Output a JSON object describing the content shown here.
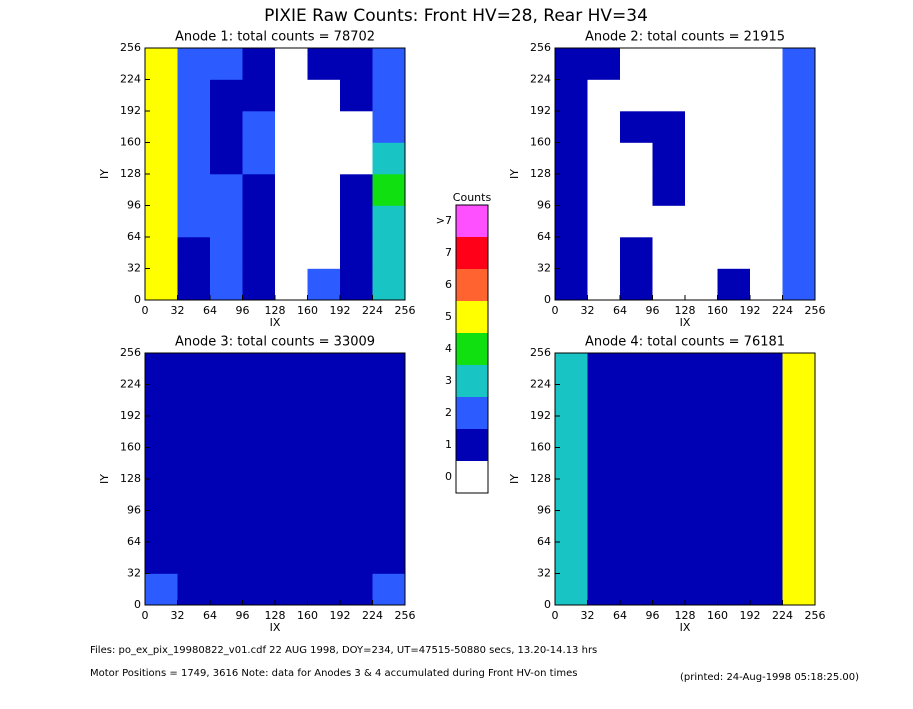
{
  "title": "PIXIE Raw Counts:  Front HV=28, Rear HV=34",
  "colorbar": {
    "title": "Counts",
    "levels": [
      0,
      1,
      2,
      3,
      4,
      5,
      6,
      7,
      {
        "value": 8,
        "label": ">7"
      }
    ],
    "colors": [
      "#ffffff",
      "#0000b4",
      "#2c5cff",
      "#18c4c4",
      "#10e010",
      "#ffff00",
      "#ff6430",
      "#ff0018",
      "#ff50ff"
    ]
  },
  "chart_data": [
    {
      "type": "heatmap",
      "title": "Anode 1: total counts = 78702",
      "xlabel": "IX",
      "ylabel": "IY",
      "xlim": [
        0,
        256
      ],
      "ylim": [
        0,
        256
      ],
      "xticks": [
        0,
        32,
        64,
        96,
        128,
        160,
        192,
        224,
        256
      ],
      "yticks": [
        0,
        32,
        64,
        96,
        128,
        160,
        192,
        224,
        256
      ],
      "z": [
        [
          5,
          1,
          2,
          1,
          0,
          2,
          1,
          3
        ],
        [
          5,
          1,
          2,
          1,
          0,
          0,
          1,
          3
        ],
        [
          5,
          2,
          2,
          1,
          0,
          0,
          1,
          3
        ],
        [
          5,
          2,
          2,
          1,
          0,
          0,
          1,
          4
        ],
        [
          5,
          2,
          1,
          2,
          0,
          0,
          0,
          3
        ],
        [
          5,
          2,
          1,
          2,
          0,
          0,
          0,
          2
        ],
        [
          5,
          2,
          1,
          1,
          0,
          0,
          1,
          2
        ],
        [
          5,
          2,
          2,
          1,
          0,
          1,
          1,
          2
        ]
      ]
    },
    {
      "type": "heatmap",
      "title": "Anode 2: total counts = 21915",
      "xlabel": "IX",
      "ylabel": "IY",
      "xlim": [
        0,
        256
      ],
      "ylim": [
        0,
        256
      ],
      "xticks": [
        0,
        32,
        64,
        96,
        128,
        160,
        192,
        224,
        256
      ],
      "yticks": [
        0,
        32,
        64,
        96,
        128,
        160,
        192,
        224,
        256
      ],
      "z": [
        [
          1,
          0,
          1,
          0,
          0,
          1,
          0,
          2
        ],
        [
          1,
          0,
          1,
          0,
          0,
          0,
          0,
          2
        ],
        [
          1,
          0,
          0,
          0,
          0,
          0,
          0,
          2
        ],
        [
          1,
          0,
          0,
          1,
          0,
          0,
          0,
          2
        ],
        [
          1,
          0,
          0,
          1,
          0,
          0,
          0,
          2
        ],
        [
          1,
          0,
          1,
          1,
          0,
          0,
          0,
          2
        ],
        [
          1,
          0,
          0,
          0,
          0,
          0,
          0,
          2
        ],
        [
          1,
          1,
          0,
          0,
          0,
          0,
          0,
          2
        ]
      ]
    },
    {
      "type": "heatmap",
      "title": "Anode 3: total counts = 33009",
      "xlabel": "IX",
      "ylabel": "IY",
      "xlim": [
        0,
        256
      ],
      "ylim": [
        0,
        256
      ],
      "xticks": [
        0,
        32,
        64,
        96,
        128,
        160,
        192,
        224,
        256
      ],
      "yticks": [
        0,
        32,
        64,
        96,
        128,
        160,
        192,
        224,
        256
      ],
      "z": [
        [
          2,
          1,
          1,
          1,
          1,
          1,
          1,
          2
        ],
        [
          1,
          1,
          1,
          1,
          1,
          1,
          1,
          1
        ],
        [
          1,
          1,
          1,
          1,
          1,
          1,
          1,
          1
        ],
        [
          1,
          1,
          1,
          1,
          1,
          1,
          1,
          1
        ],
        [
          1,
          1,
          1,
          1,
          1,
          1,
          1,
          1
        ],
        [
          1,
          1,
          1,
          1,
          1,
          1,
          1,
          1
        ],
        [
          1,
          1,
          1,
          1,
          1,
          1,
          1,
          1
        ],
        [
          1,
          1,
          1,
          1,
          1,
          1,
          1,
          1
        ]
      ]
    },
    {
      "type": "heatmap",
      "title": "Anode 4: total counts = 76181",
      "xlabel": "IX",
      "ylabel": "IY",
      "xlim": [
        0,
        256
      ],
      "ylim": [
        0,
        256
      ],
      "xticks": [
        0,
        32,
        64,
        96,
        128,
        160,
        192,
        224,
        256
      ],
      "yticks": [
        0,
        32,
        64,
        96,
        128,
        160,
        192,
        224,
        256
      ],
      "z": [
        [
          3,
          1,
          1,
          1,
          1,
          1,
          1,
          5
        ],
        [
          3,
          1,
          1,
          1,
          1,
          1,
          1,
          5
        ],
        [
          3,
          1,
          1,
          1,
          1,
          1,
          1,
          5
        ],
        [
          3,
          1,
          1,
          1,
          1,
          1,
          1,
          5
        ],
        [
          3,
          1,
          1,
          1,
          1,
          1,
          1,
          5
        ],
        [
          3,
          1,
          1,
          1,
          1,
          1,
          1,
          5
        ],
        [
          3,
          1,
          1,
          1,
          1,
          1,
          1,
          5
        ],
        [
          3,
          1,
          1,
          1,
          1,
          1,
          1,
          5
        ]
      ]
    }
  ],
  "footer": [
    "Files: po_ex_pix_19980822_v01.cdf    22 AUG 1998, DOY=234, UT=47515-50880 secs, 13.20-14.13 hrs",
    "Motor Positions = 1749, 3616   Note: data for Anodes 3 & 4 accumulated during Front HV-on times",
    "(printed: 24-Aug-1998 05:18:25.00)"
  ]
}
